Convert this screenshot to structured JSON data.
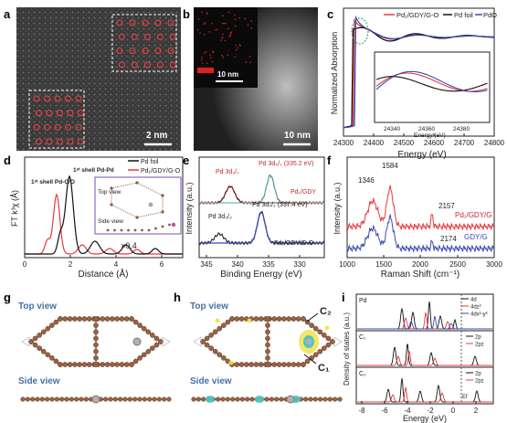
{
  "panels": {
    "a": {
      "letter": "a",
      "scale": "2 nm"
    },
    "b": {
      "letter": "b",
      "scale_inset": "10 nm",
      "scale_main": "10 nm"
    },
    "c": {
      "letter": "c",
      "ylabel": "Normalized Absorption",
      "xlabel": "Energy (eV)",
      "xticks": [
        "24300",
        "24400",
        "24500",
        "24600",
        "24700",
        "24800"
      ],
      "legend": [
        "Pd₁/GDY/G-O",
        "Pd foil",
        "PdO"
      ],
      "inset_xticks": [
        "24340",
        "24360",
        "24380"
      ],
      "inset_xlabel": "Energy (eV)"
    },
    "d": {
      "letter": "d",
      "ylabel": "FT k³χ (Å)",
      "xlabel": "Distance (Å)",
      "xticks": [
        "0",
        "2",
        "4",
        "6"
      ],
      "legend": [
        "Pd foil",
        "Pd₁/GDY/G-O"
      ],
      "ann_first_pd_c": "1ˢᵗ shell Pd-C/O",
      "ann_first_pd_pd": "1ˢᵗ shell Pd-Pd",
      "top_view": "Top view",
      "side_view": "Side view",
      "multiplier": "×0.4"
    },
    "e": {
      "letter": "e",
      "ylabel": "Intensity (a.u.)",
      "xlabel": "Binding Energy (eV)",
      "xticks": [
        "345",
        "340",
        "335",
        "330"
      ],
      "top_3d52": "Pd 3d₅/₂ (335.2 eV)",
      "top_3d32": "Pd 3d₃/₂",
      "top_sample": "Pd₁/GDY",
      "bot_3d52": "Pd 3d₅/₂ (337.4 eV)",
      "bot_3d32": "Pd 3d₃/₂",
      "bot_sample": "Pd₁/GDY/G-O"
    },
    "f": {
      "letter": "f",
      "ylabel": "Intensity (a.u.)",
      "xlabel": "Raman Shift (cm⁻¹)",
      "xticks": [
        "1000",
        "1500",
        "2000",
        "2500",
        "3000"
      ],
      "peak1": "1346",
      "peak2": "1584",
      "peak3": "2157",
      "peak4": "2174",
      "sample_top": "Pd₁/GDY/G",
      "sample_bot": "GDY/G"
    },
    "g": {
      "letter": "g",
      "top_view": "Top view",
      "side_view": "Side view"
    },
    "h": {
      "letter": "h",
      "top_view": "Top view",
      "side_view": "Side view",
      "c1": "C₁",
      "c2": "C₂"
    },
    "i": {
      "letter": "i",
      "ylabel": "Density of states (a.u.)",
      "xlabel": "Energy (eV)",
      "xticks": [
        "-8",
        "-6",
        "-4",
        "-2",
        "0",
        "2"
      ],
      "pd_label": "Pd",
      "pd_legend": [
        "4d",
        "4dz²",
        "4dx²-y²"
      ],
      "c1_label": "C₁",
      "c1_legend": [
        "2p",
        "2pz"
      ],
      "c2_label": "C₂",
      "c2_legend": [
        "2p",
        "2pz"
      ],
      "ef": "Ef"
    }
  },
  "colors": {
    "red": "#e8383d",
    "black": "#111111",
    "blue": "#3a4ab5",
    "teal": "#2fb3b0",
    "brown": "#8b5a3c"
  }
}
